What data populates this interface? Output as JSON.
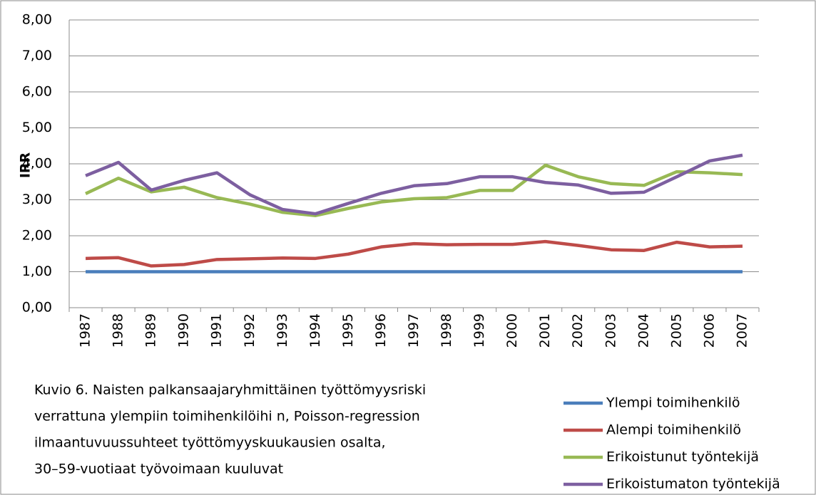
{
  "chart_data": {
    "type": "line",
    "caption": [
      "Kuvio 6. Naisten palkansaajaryhmittäinen työttömyysriski",
      "verrattuna ylempiin toimihenkilöihi n, Poisson-regression",
      "ilmaantuvuussuhteet työttömyyskuukausien osalta,",
      "30–59-vuotiaat työvoimaan kuuluvat"
    ],
    "ylabel": "IRR",
    "categories": [
      "1987",
      "1988",
      "1989",
      "1990",
      "1991",
      "1992",
      "1993",
      "1994",
      "1995",
      "1996",
      "1997",
      "1998",
      "1999",
      "2000",
      "2001",
      "2002",
      "2003",
      "2004",
      "2005",
      "2006",
      "2007"
    ],
    "series": [
      {
        "name": "Ylempi toimihenkilö",
        "color": "#4a7ebb",
        "values": [
          1,
          1,
          1,
          1,
          1,
          1,
          1,
          1,
          1,
          1,
          1,
          1,
          1,
          1,
          1,
          1,
          1,
          1,
          1,
          1,
          1
        ]
      },
      {
        "name": "Alempi toimihenkilö",
        "color": "#be4b48",
        "values": [
          1.37,
          1.39,
          1.16,
          1.2,
          1.34,
          1.36,
          1.38,
          1.37,
          1.49,
          1.69,
          1.78,
          1.75,
          1.76,
          1.76,
          1.84,
          1.73,
          1.61,
          1.59,
          1.82,
          1.69,
          1.71
        ]
      },
      {
        "name": "Erikoistunut työntekijä",
        "color": "#98b954",
        "values": [
          3.17,
          3.6,
          3.22,
          3.35,
          3.06,
          2.88,
          2.65,
          2.56,
          2.76,
          2.94,
          3.03,
          3.06,
          3.26,
          3.26,
          3.96,
          3.64,
          3.45,
          3.4,
          3.78,
          3.75,
          3.7
        ]
      },
      {
        "name": "Erikoistumaton työntekijä",
        "color": "#7d5fa0",
        "values": [
          3.67,
          4.04,
          3.27,
          3.54,
          3.75,
          3.14,
          2.73,
          2.61,
          2.9,
          3.18,
          3.39,
          3.45,
          3.64,
          3.64,
          3.48,
          3.41,
          3.18,
          3.21,
          3.64,
          4.08,
          4.24
        ]
      }
    ],
    "ylim": [
      0,
      8
    ],
    "yticks": [
      {
        "value": 0,
        "label": "0,00"
      },
      {
        "value": 1,
        "label": "1,00"
      },
      {
        "value": 2,
        "label": "2,00"
      },
      {
        "value": 3,
        "label": "3,00"
      },
      {
        "value": 4,
        "label": "4,00"
      },
      {
        "value": 5,
        "label": "5,00"
      },
      {
        "value": 6,
        "label": "6,00"
      },
      {
        "value": 7,
        "label": "7,00"
      },
      {
        "value": 8,
        "label": "8,00"
      }
    ],
    "grid": true,
    "legend": "lower right"
  }
}
